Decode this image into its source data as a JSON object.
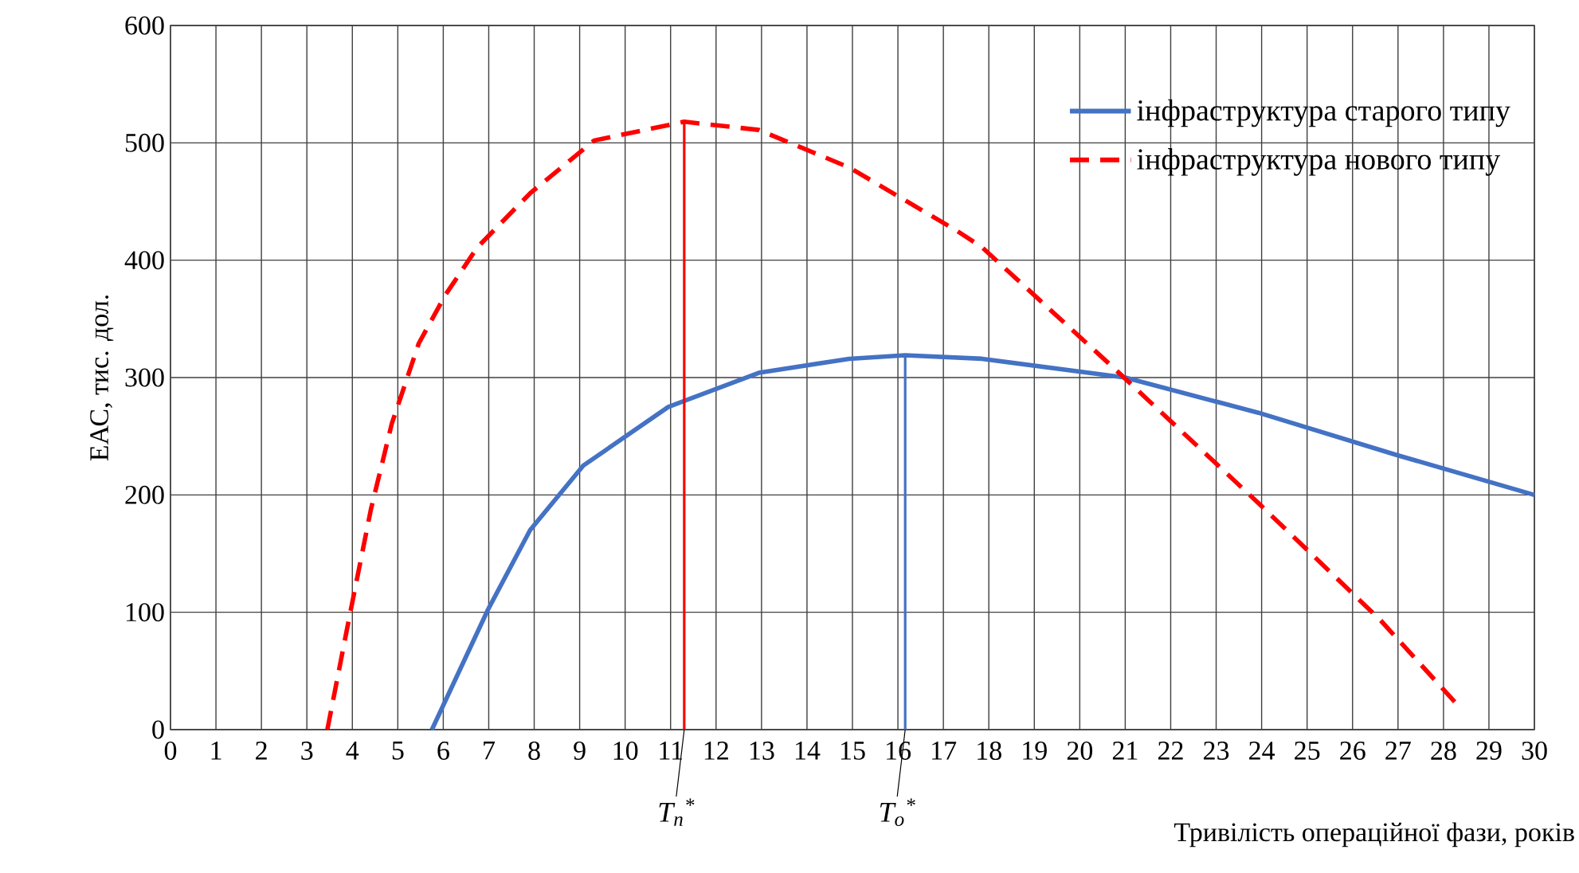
{
  "chart_data": {
    "type": "line",
    "ylabel": "ЕАС, тис. дол.",
    "xlabel": "Тривілість операційної фази, років",
    "xlim": [
      0,
      30
    ],
    "xticks": [
      0,
      1,
      2,
      3,
      4,
      5,
      6,
      7,
      8,
      9,
      10,
      11,
      12,
      13,
      14,
      15,
      16,
      17,
      18,
      19,
      20,
      21,
      22,
      23,
      24,
      25,
      26,
      27,
      28,
      29,
      30
    ],
    "ylim": [
      0,
      600
    ],
    "yticks": [
      0,
      100,
      200,
      300,
      400,
      500,
      600
    ],
    "grid": true,
    "legend": "top right",
    "series": [
      {
        "name": "інфраструктура старого типу",
        "color": "#4472c4",
        "line_style": "solid",
        "x": [
          5.75,
          6.98,
          7.91,
          9.08,
          10.95,
          12.94,
          14.93,
          16.16,
          17.85,
          21.0,
          23.93,
          26.97,
          30.0
        ],
        "values": [
          0,
          102,
          170,
          225,
          275,
          304,
          316,
          319,
          316,
          300,
          270,
          234,
          200
        ]
      },
      {
        "name": "інфраструктура нового типу",
        "color": "#ff0000",
        "line_style": "dashed",
        "x": [
          3.45,
          3.94,
          4.41,
          4.87,
          5.46,
          6.04,
          6.75,
          7.91,
          9.32,
          11.3,
          12.94,
          14.93,
          17.3,
          17.85,
          20.78,
          23.93,
          26.62,
          28.38
        ],
        "values": [
          0,
          97,
          188,
          261,
          329,
          370,
          411,
          457,
          502,
          518,
          511,
          479,
          425,
          411,
          307,
          193,
          93,
          18
        ]
      },
      {
        "color": "#ff0000",
        "line_style": "solid",
        "x": [
          11.3,
          11.3
        ],
        "values": [
          0,
          518
        ]
      },
      {
        "color": "#4472c4",
        "line_style": "solid",
        "x": [
          16.16,
          16.16
        ],
        "values": [
          0,
          319
        ]
      }
    ],
    "annotations": [
      {
        "text": "T$_{n}$$^{*}$",
        "x": 11.3,
        "y": 0
      },
      {
        "text": "T$_{o}$$^{*}$",
        "x": 16.16,
        "y": 0
      }
    ]
  }
}
